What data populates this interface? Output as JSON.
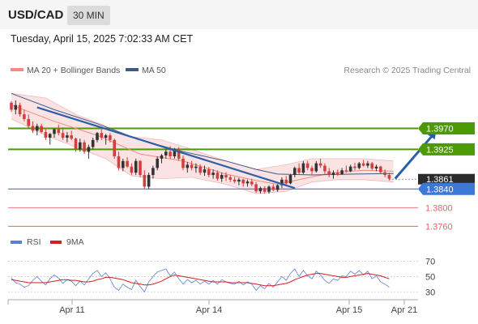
{
  "header": {
    "symbol": "USD/CAD",
    "timeframe": "30 MIN",
    "datetime": "Tuesday, April 15, 2025 7:02:33 AM CET"
  },
  "colors": {
    "ma20": "#f28b82",
    "ma50": "#3d5a8a",
    "band_fill": "#fbe3e3",
    "resistance": "#4e9a06",
    "support_blue": "#3c78d8",
    "support_red": "#e06666",
    "candle_up": "#333333",
    "candle_down": "#d04040",
    "rsi": "#5b7fd6",
    "rsi_ma": "#d02020",
    "arrow": "#2d5fa8",
    "current_price_bg": "#2a2a2a"
  },
  "chart_data": [
    {
      "type": "candlestick",
      "title": "",
      "legend": [
        {
          "name": "MA 20 + Bollinger Bands",
          "color": "#f28b82"
        },
        {
          "name": "MA 50",
          "color": "#3d5a8a"
        }
      ],
      "credit": "Research © 2025 Trading Central",
      "y_range": [
        1.3745,
        1.4075
      ],
      "levels": [
        {
          "value": 1.397,
          "label": "1.3970",
          "kind": "resistance",
          "style": "box-green"
        },
        {
          "value": 1.3925,
          "label": "1.3925",
          "kind": "resistance",
          "style": "box-green"
        },
        {
          "value": 1.3861,
          "label": "1.3861",
          "kind": "current",
          "style": "box-dark"
        },
        {
          "value": 1.384,
          "label": "1.3840",
          "kind": "pivot",
          "style": "box-blue"
        },
        {
          "value": 1.38,
          "label": "1.3800",
          "kind": "support",
          "style": "text-red"
        },
        {
          "value": 1.376,
          "label": "1.3760",
          "kind": "support",
          "style": "text-red"
        }
      ],
      "x_ticks": [
        "Apr 11",
        "Apr 14",
        "Apr 15",
        "Apr 21"
      ],
      "candles": [
        [
          1.4025,
          1.4028,
          1.4005,
          1.401
        ],
        [
          1.401,
          1.403,
          1.4,
          1.402
        ],
        [
          1.402,
          1.4025,
          1.3995,
          1.4
        ],
        [
          1.4,
          1.401,
          1.3985,
          1.399
        ],
        [
          1.399,
          1.4,
          1.397,
          1.3975
        ],
        [
          1.3975,
          1.3985,
          1.396,
          1.3965
        ],
        [
          1.3965,
          1.398,
          1.3955,
          1.3975
        ],
        [
          1.3975,
          1.398,
          1.396,
          1.3962
        ],
        [
          1.3962,
          1.397,
          1.3945,
          1.395
        ],
        [
          1.395,
          1.396,
          1.3935,
          1.3958
        ],
        [
          1.3958,
          1.397,
          1.395,
          1.3968
        ],
        [
          1.3968,
          1.3978,
          1.3955,
          1.396
        ],
        [
          1.396,
          1.3972,
          1.3945,
          1.395
        ],
        [
          1.395,
          1.3962,
          1.394,
          1.3955
        ],
        [
          1.3955,
          1.3965,
          1.3945,
          1.3948
        ],
        [
          1.3948,
          1.395,
          1.392,
          1.3925
        ],
        [
          1.3925,
          1.3948,
          1.392,
          1.394
        ],
        [
          1.394,
          1.3945,
          1.3915,
          1.392
        ],
        [
          1.392,
          1.3935,
          1.3905,
          1.393
        ],
        [
          1.393,
          1.395,
          1.3925,
          1.3945
        ],
        [
          1.3945,
          1.3962,
          1.394,
          1.396
        ],
        [
          1.396,
          1.3968,
          1.3945,
          1.395
        ],
        [
          1.395,
          1.3958,
          1.3935,
          1.3955
        ],
        [
          1.3955,
          1.396,
          1.394,
          1.3945
        ],
        [
          1.3945,
          1.3948,
          1.3905,
          1.391
        ],
        [
          1.391,
          1.392,
          1.388,
          1.3885
        ],
        [
          1.3885,
          1.3905,
          1.3878,
          1.39
        ],
        [
          1.39,
          1.3908,
          1.3885,
          1.3888
        ],
        [
          1.3888,
          1.3895,
          1.387,
          1.3875
        ],
        [
          1.3875,
          1.3905,
          1.387,
          1.39
        ],
        [
          1.39,
          1.3902,
          1.3865,
          1.387
        ],
        [
          1.387,
          1.388,
          1.384,
          1.3845
        ],
        [
          1.3845,
          1.3875,
          1.384,
          1.387
        ],
        [
          1.387,
          1.389,
          1.3862,
          1.3885
        ],
        [
          1.3885,
          1.391,
          1.388,
          1.3905
        ],
        [
          1.3905,
          1.3915,
          1.3895,
          1.3912
        ],
        [
          1.3912,
          1.3925,
          1.3905,
          1.392
        ],
        [
          1.392,
          1.3932,
          1.3905,
          1.391
        ],
        [
          1.391,
          1.3928,
          1.3905,
          1.3925
        ],
        [
          1.3925,
          1.393,
          1.39,
          1.3905
        ],
        [
          1.3905,
          1.3912,
          1.388,
          1.3885
        ],
        [
          1.3885,
          1.3898,
          1.3875,
          1.3892
        ],
        [
          1.3892,
          1.39,
          1.388,
          1.3885
        ],
        [
          1.3885,
          1.3895,
          1.3875,
          1.3888
        ],
        [
          1.3888,
          1.3893,
          1.387,
          1.3875
        ],
        [
          1.3875,
          1.389,
          1.3868,
          1.3882
        ],
        [
          1.3882,
          1.3887,
          1.3865,
          1.387
        ],
        [
          1.387,
          1.3882,
          1.3862,
          1.3875
        ],
        [
          1.3875,
          1.388,
          1.3858,
          1.3862
        ],
        [
          1.3862,
          1.3875,
          1.3855,
          1.387
        ],
        [
          1.387,
          1.3876,
          1.3857,
          1.3865
        ],
        [
          1.3865,
          1.387,
          1.3855,
          1.386
        ],
        [
          1.386,
          1.3866,
          1.3852,
          1.3856
        ],
        [
          1.3856,
          1.3864,
          1.3848,
          1.386
        ],
        [
          1.386,
          1.3862,
          1.3845,
          1.3852
        ],
        [
          1.3852,
          1.386,
          1.3845,
          1.3856
        ],
        [
          1.3856,
          1.3862,
          1.3846,
          1.385
        ],
        [
          1.385,
          1.3855,
          1.3832,
          1.3835
        ],
        [
          1.3835,
          1.3845,
          1.383,
          1.3842
        ],
        [
          1.3842,
          1.3846,
          1.383,
          1.3834
        ],
        [
          1.3834,
          1.3848,
          1.383,
          1.3845
        ],
        [
          1.3845,
          1.385,
          1.3835,
          1.3838
        ],
        [
          1.3838,
          1.385,
          1.3834,
          1.3848
        ],
        [
          1.3848,
          1.3865,
          1.3842,
          1.386
        ],
        [
          1.386,
          1.3868,
          1.3848,
          1.3852
        ],
        [
          1.3852,
          1.3872,
          1.385,
          1.387
        ],
        [
          1.387,
          1.3888,
          1.3865,
          1.3885
        ],
        [
          1.3885,
          1.3895,
          1.387,
          1.3875
        ],
        [
          1.3875,
          1.39,
          1.3872,
          1.3895
        ],
        [
          1.3895,
          1.39,
          1.388,
          1.3885
        ],
        [
          1.3885,
          1.389,
          1.387,
          1.3878
        ],
        [
          1.3878,
          1.39,
          1.3875,
          1.3895
        ],
        [
          1.3895,
          1.3905,
          1.3885,
          1.389
        ],
        [
          1.389,
          1.3895,
          1.3872,
          1.3878
        ],
        [
          1.3878,
          1.3885,
          1.3865,
          1.387
        ],
        [
          1.387,
          1.388,
          1.3862,
          1.3875
        ],
        [
          1.3875,
          1.3882,
          1.3868,
          1.3872
        ],
        [
          1.3872,
          1.3885,
          1.387,
          1.388
        ],
        [
          1.388,
          1.389,
          1.3875,
          1.3878
        ],
        [
          1.3878,
          1.3892,
          1.3876,
          1.3888
        ],
        [
          1.3888,
          1.3896,
          1.388,
          1.3885
        ],
        [
          1.3885,
          1.3898,
          1.3882,
          1.3895
        ],
        [
          1.3895,
          1.3902,
          1.3888,
          1.389
        ],
        [
          1.389,
          1.39,
          1.3885,
          1.3895
        ],
        [
          1.3895,
          1.3898,
          1.388,
          1.3884
        ],
        [
          1.3884,
          1.3892,
          1.3878,
          1.3888
        ],
        [
          1.3888,
          1.389,
          1.3872,
          1.3876
        ],
        [
          1.3876,
          1.3882,
          1.3865,
          1.387
        ],
        [
          1.387,
          1.3875,
          1.3858,
          1.3862
        ]
      ],
      "ma20": [
        [
          0,
          1.402
        ],
        [
          10,
          1.3985
        ],
        [
          20,
          1.3955
        ],
        [
          30,
          1.3915
        ],
        [
          40,
          1.39
        ],
        [
          50,
          1.3872
        ],
        [
          57,
          1.3858
        ],
        [
          62,
          1.385
        ],
        [
          68,
          1.3862
        ],
        [
          75,
          1.3875
        ],
        [
          82,
          1.388
        ],
        [
          89,
          1.3878
        ]
      ],
      "bb_upper": [
        [
          0,
          1.4045
        ],
        [
          8,
          1.4035
        ],
        [
          15,
          1.4
        ],
        [
          22,
          1.3975
        ],
        [
          28,
          1.3952
        ],
        [
          35,
          1.3945
        ],
        [
          42,
          1.3925
        ],
        [
          50,
          1.39
        ],
        [
          57,
          1.3882
        ],
        [
          64,
          1.3892
        ],
        [
          70,
          1.3905
        ],
        [
          76,
          1.3905
        ],
        [
          82,
          1.3905
        ],
        [
          89,
          1.39
        ]
      ],
      "bb_lower": [
        [
          0,
          1.399
        ],
        [
          8,
          1.3955
        ],
        [
          15,
          1.393
        ],
        [
          22,
          1.3905
        ],
        [
          28,
          1.3868
        ],
        [
          35,
          1.3862
        ],
        [
          42,
          1.3865
        ],
        [
          50,
          1.385
        ],
        [
          57,
          1.383
        ],
        [
          64,
          1.3835
        ],
        [
          70,
          1.3855
        ],
        [
          76,
          1.386
        ],
        [
          82,
          1.386
        ],
        [
          89,
          1.3855
        ]
      ],
      "ma50": [
        [
          0,
          1.4045
        ],
        [
          10,
          1.401
        ],
        [
          20,
          1.398
        ],
        [
          30,
          1.3945
        ],
        [
          40,
          1.392
        ],
        [
          50,
          1.39
        ],
        [
          57,
          1.3882
        ],
        [
          62,
          1.3872
        ],
        [
          70,
          1.387
        ],
        [
          80,
          1.3872
        ],
        [
          89,
          1.3873
        ]
      ],
      "trendline": [
        [
          6,
          1.4015
        ],
        [
          66,
          1.3842
        ]
      ],
      "forecast_arrow": [
        [
          89,
          1.3862
        ],
        [
          99,
          1.3967
        ]
      ]
    },
    {
      "type": "line",
      "title": "",
      "legend": [
        {
          "name": "RSI",
          "color": "#5b7fd6"
        },
        {
          "name": "9MA",
          "color": "#d02020"
        }
      ],
      "y_range": [
        25,
        78
      ],
      "y_ticks": [
        30,
        50,
        70
      ],
      "series": [
        {
          "name": "RSI",
          "values": [
            48,
            42,
            40,
            36,
            38,
            45,
            50,
            44,
            39,
            47,
            52,
            48,
            41,
            46,
            44,
            38,
            44,
            39,
            47,
            54,
            58,
            50,
            55,
            47,
            36,
            32,
            40,
            36,
            33,
            45,
            37,
            30,
            43,
            50,
            56,
            58,
            60,
            51,
            56,
            47,
            40,
            46,
            42,
            45,
            40,
            44,
            40,
            45,
            40,
            46,
            43,
            41,
            40,
            44,
            39,
            43,
            40,
            32,
            38,
            34,
            41,
            36,
            43,
            50,
            45,
            54,
            60,
            50,
            58,
            51,
            47,
            57,
            52,
            45,
            41,
            47,
            45,
            51,
            50,
            57,
            53,
            58,
            52,
            57,
            47,
            51,
            43,
            40,
            36
          ]
        },
        {
          "name": "9MA",
          "values": [
            46,
            45,
            44,
            43,
            42,
            42,
            42,
            42,
            42,
            43,
            44,
            45,
            46,
            46,
            45,
            45,
            44,
            43,
            43,
            44,
            46,
            47,
            49,
            49,
            48,
            47,
            46,
            44,
            42,
            41,
            40,
            39,
            39,
            40,
            42,
            44,
            47,
            50,
            52,
            51,
            50,
            49,
            48,
            47,
            46,
            45,
            44,
            43,
            43,
            43,
            43,
            42,
            42,
            42,
            42,
            42,
            41,
            40,
            39,
            38,
            38,
            38,
            39,
            40,
            41,
            43,
            46,
            48,
            50,
            52,
            53,
            54,
            54,
            53,
            52,
            51,
            50,
            49,
            49,
            50,
            51,
            52,
            53,
            54,
            53,
            52,
            51,
            49,
            47
          ]
        }
      ]
    }
  ]
}
